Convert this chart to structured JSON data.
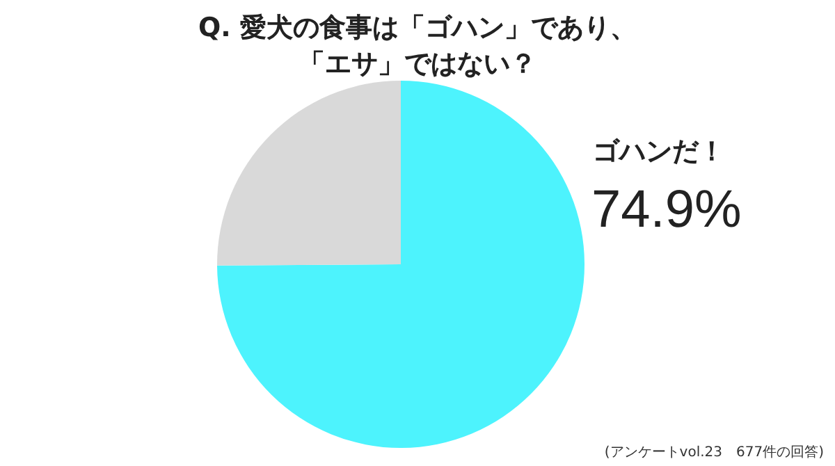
{
  "chart_data": {
    "type": "pie",
    "title": "Q.  愛犬の食事は「ゴハン」であり、「エサ」ではない？",
    "categories": [
      "ゴハンだ！",
      null
    ],
    "values": [
      74.9,
      25.1
    ],
    "colors": [
      "#4df3fd",
      "#d9d9d9"
    ],
    "value_labels": [
      "74.9%",
      null
    ],
    "annotations": [
      "(アンケートvol.23　677件の回答)"
    ]
  }
}
